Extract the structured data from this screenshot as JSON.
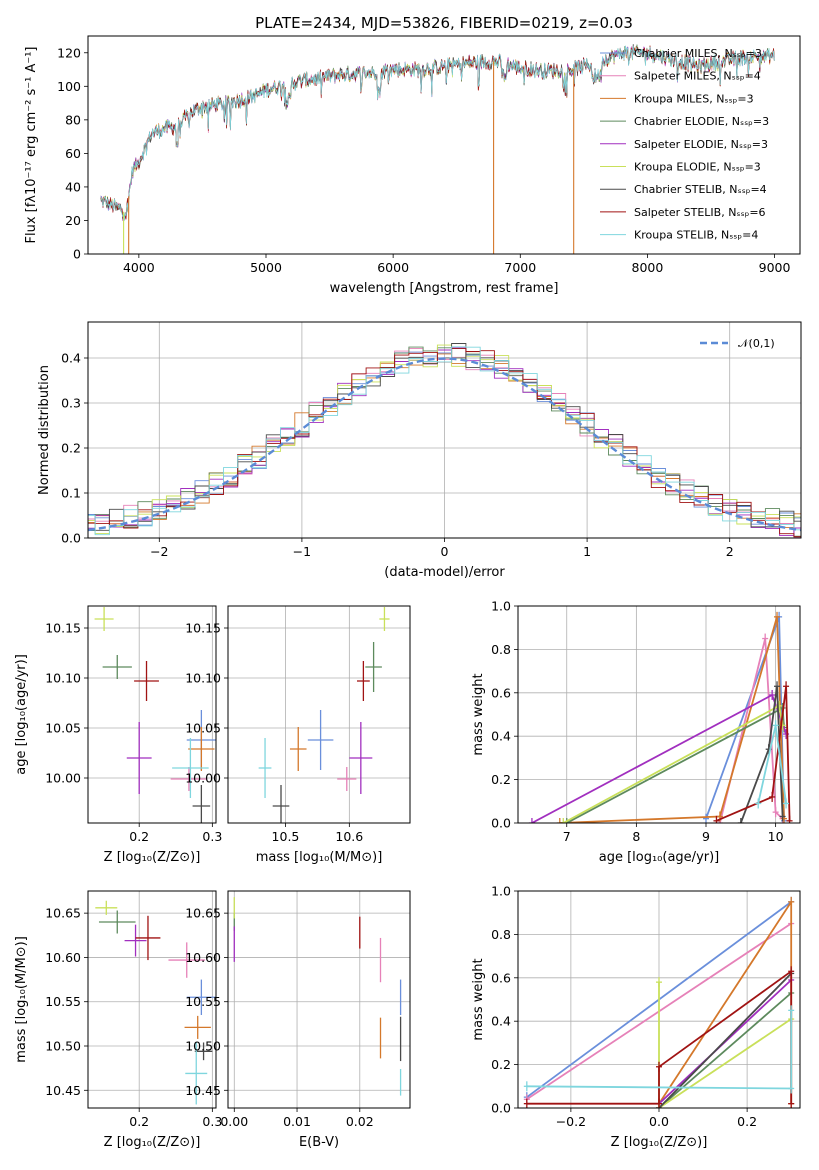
{
  "figure_title": "PLATE=2434, MJD=53826, FIBERID=0219, z=0.03",
  "model_colors": [
    "#6a8fdb",
    "#e681b8",
    "#d4782b",
    "#5d8a5d",
    "#a12fbf",
    "#c9e05a",
    "#4a4a4a",
    "#a01313",
    "#7fd6de"
  ],
  "chart_data": [
    {
      "id": "spectrum",
      "type": "line",
      "title": "PLATE=2434, MJD=53826, FIBERID=0219, z=0.03",
      "xlabel": "wavelength [Angstrom, rest frame]",
      "ylabel": "Flux [fλ10⁻¹⁷ erg cm⁻² s⁻¹ A⁻¹]",
      "xlim": [
        3600,
        9200
      ],
      "ylim": [
        0,
        130
      ],
      "xticks": [
        4000,
        5000,
        6000,
        7000,
        8000,
        9000
      ],
      "yticks": [
        0,
        20,
        40,
        60,
        80,
        100,
        120
      ],
      "grid": false,
      "legend_position": "right",
      "legend": [
        "Chabrier MILES, Nₛₛₚ=3",
        "Salpeter MILES, Nₛₛₚ=4",
        "Kroupa MILES, Nₛₛₚ=3",
        "Chabrier ELODIE, Nₛₛₚ=3",
        "Salpeter ELODIE, Nₛₛₚ=3",
        "Kroupa ELODIE, Nₛₛₚ=3",
        "Chabrier STELIB, Nₛₛₚ=4",
        "Salpeter STELIB, Nₛₛₚ=6",
        "Kroupa STELIB, Nₛₛₚ=4"
      ],
      "continuum": {
        "wavelength": [
          3700,
          3850,
          3900,
          3950,
          4000,
          4100,
          4200,
          4300,
          4400,
          4500,
          4700,
          4900,
          5000,
          5200,
          5400,
          5600,
          5800,
          6000,
          6200,
          6400,
          6600,
          6800,
          7000,
          7200,
          7400,
          7600,
          7800,
          8000,
          8200,
          8400,
          8600,
          8800,
          9000
        ],
        "flux": [
          32,
          27,
          24,
          50,
          55,
          72,
          75,
          76,
          84,
          88,
          90,
          94,
          98,
          102,
          105,
          107,
          108,
          110,
          110,
          112,
          114,
          115,
          111,
          109,
          110,
          114,
          120,
          120,
          116,
          112,
          115,
          118,
          118
        ]
      },
      "dropouts": [
        {
          "model": 2,
          "wavelength": 3920
        },
        {
          "model": 5,
          "wavelength": 3880
        },
        {
          "model": 2,
          "wavelength": 6790
        },
        {
          "model": 2,
          "wavelength": 7420
        }
      ]
    },
    {
      "id": "residuals",
      "type": "line",
      "xlabel": "(data-model)/error",
      "ylabel": "Normed distribution",
      "xlim": [
        -2.5,
        2.5
      ],
      "ylim": [
        0,
        0.48
      ],
      "xticks": [
        -2,
        -1,
        0,
        1,
        2
      ],
      "yticks": [
        0.0,
        0.1,
        0.2,
        0.3,
        0.4
      ],
      "grid": true,
      "legend_position": "top-right",
      "reference_curve": {
        "name": "𝒩(0,1)",
        "mean": 0,
        "sigma": 1
      },
      "bin_width": 0.1
    },
    {
      "id": "age-vs-z",
      "type": "scatter",
      "xlabel": "Z [log₁₀(Z/Z⊙)]",
      "ylabel": "age  [log₁₀(age/yr)]",
      "xlim": [
        0.13,
        0.305
      ],
      "ylim": [
        9.955,
        10.172
      ],
      "xticks": [
        0.2,
        0.3
      ],
      "yticks": [
        10.0,
        10.05,
        10.1,
        10.15
      ],
      "grid": true,
      "points": [
        {
          "model": 0,
          "x": 0.285,
          "y": 10.038,
          "xerr": 0.02,
          "yerr": 0.03
        },
        {
          "model": 1,
          "x": 0.268,
          "y": 9.999,
          "xerr": 0.025,
          "yerr": 0.012
        },
        {
          "model": 2,
          "x": 0.285,
          "y": 10.029,
          "xerr": 0.018,
          "yerr": 0.022
        },
        {
          "model": 3,
          "x": 0.17,
          "y": 10.111,
          "xerr": 0.02,
          "yerr": 0.012
        },
        {
          "model": 4,
          "x": 0.2,
          "y": 10.02,
          "xerr": 0.017,
          "yerr": 0.036
        },
        {
          "model": 5,
          "x": 0.152,
          "y": 10.159,
          "xerr": 0.013,
          "yerr": 0.012
        },
        {
          "model": 6,
          "x": 0.285,
          "y": 9.972,
          "xerr": 0.012,
          "yerr": 0.021
        },
        {
          "model": 7,
          "x": 0.21,
          "y": 10.097,
          "xerr": 0.017,
          "yerr": 0.02
        },
        {
          "model": 8,
          "x": 0.27,
          "y": 10.01,
          "xerr": 0.025,
          "yerr": 0.03
        }
      ]
    },
    {
      "id": "age-vs-mass",
      "type": "scatter",
      "xlabel": "mass [log₁₀(M/M⊙)]",
      "ylabel": "",
      "xlim": [
        10.41,
        10.695
      ],
      "ylim": [
        9.955,
        10.172
      ],
      "xticks": [
        10.5,
        10.6
      ],
      "yticks": [
        10.0,
        10.05,
        10.1,
        10.15
      ],
      "grid": true,
      "points": [
        {
          "model": 0,
          "x": 10.555,
          "y": 10.038,
          "xerr": 0.02,
          "yerr": 0.03
        },
        {
          "model": 1,
          "x": 10.596,
          "y": 9.999,
          "xerr": 0.015,
          "yerr": 0.012
        },
        {
          "model": 2,
          "x": 10.52,
          "y": 10.029,
          "xerr": 0.013,
          "yerr": 0.022
        },
        {
          "model": 3,
          "x": 10.638,
          "y": 10.111,
          "xerr": 0.013,
          "yerr": 0.025
        },
        {
          "model": 4,
          "x": 10.618,
          "y": 10.02,
          "xerr": 0.018,
          "yerr": 0.036
        },
        {
          "model": 5,
          "x": 10.655,
          "y": 10.159,
          "xerr": 0.008,
          "yerr": 0.012
        },
        {
          "model": 6,
          "x": 10.493,
          "y": 9.972,
          "xerr": 0.013,
          "yerr": 0.021
        },
        {
          "model": 7,
          "x": 10.622,
          "y": 10.097,
          "xerr": 0.01,
          "yerr": 0.02
        },
        {
          "model": 8,
          "x": 10.468,
          "y": 10.01,
          "xerr": 0.01,
          "yerr": 0.03
        }
      ]
    },
    {
      "id": "mass-weight-vs-age",
      "type": "line",
      "xlabel": "age  [log₁₀(age/yr)]",
      "ylabel": "mass weight",
      "xlim": [
        6.3,
        10.35
      ],
      "ylim": [
        0,
        1.0
      ],
      "xticks": [
        7,
        8,
        9,
        10
      ],
      "yticks": [
        0.0,
        0.2,
        0.4,
        0.6,
        0.8,
        1.0
      ],
      "grid": true,
      "series": [
        {
          "model": 0,
          "x": [
            9.0,
            10.05,
            10.12
          ],
          "y": [
            0.02,
            0.95,
            0.01
          ]
        },
        {
          "model": 1,
          "x": [
            9.2,
            9.85,
            10.0,
            10.1
          ],
          "y": [
            0.0,
            0.85,
            0.05,
            0.02
          ]
        },
        {
          "model": 2,
          "x": [
            6.9,
            9.2,
            10.02,
            10.12
          ],
          "y": [
            0.0,
            0.03,
            0.95,
            0.02
          ]
        },
        {
          "model": 3,
          "x": [
            7.0,
            10.1,
            10.12
          ],
          "y": [
            0.0,
            0.53,
            0.44
          ]
        },
        {
          "model": 4,
          "x": [
            6.5,
            9.95,
            10.15
          ],
          "y": [
            0.0,
            0.59,
            0.41
          ]
        },
        {
          "model": 5,
          "x": [
            6.95,
            10.05,
            10.1
          ],
          "y": [
            0.0,
            0.54,
            0.45
          ]
        },
        {
          "model": 6,
          "x": [
            9.5,
            9.9,
            10.02,
            10.1
          ],
          "y": [
            0.0,
            0.34,
            0.63,
            0.03
          ]
        },
        {
          "model": 7,
          "x": [
            9.15,
            9.95,
            10.15,
            10.2
          ],
          "y": [
            0.01,
            0.12,
            0.63,
            0.01
          ]
        },
        {
          "model": 8,
          "x": [
            9.75,
            10.0,
            10.15
          ],
          "y": [
            0.09,
            0.45,
            0.09
          ]
        }
      ]
    },
    {
      "id": "mass-vs-z",
      "type": "scatter",
      "xlabel": "Z [log₁₀(Z/Z⊙)]",
      "ylabel": "mass [log₁₀(M/M⊙)]",
      "xlim": [
        0.13,
        0.305
      ],
      "ylim": [
        10.43,
        10.675
      ],
      "xticks": [
        0.2,
        0.3
      ],
      "yticks": [
        10.45,
        10.5,
        10.55,
        10.6,
        10.65
      ],
      "grid": true,
      "points": [
        {
          "model": 0,
          "x": 0.285,
          "y": 10.555,
          "xerr": 0.02,
          "yerr": 0.02
        },
        {
          "model": 1,
          "x": 0.265,
          "y": 10.597,
          "xerr": 0.025,
          "yerr": 0.02
        },
        {
          "model": 2,
          "x": 0.28,
          "y": 10.521,
          "xerr": 0.018,
          "yerr": 0.013
        },
        {
          "model": 3,
          "x": 0.17,
          "y": 10.64,
          "xerr": 0.025,
          "yerr": 0.013
        },
        {
          "model": 4,
          "x": 0.195,
          "y": 10.619,
          "xerr": 0.015,
          "yerr": 0.018
        },
        {
          "model": 5,
          "x": 0.155,
          "y": 10.656,
          "xerr": 0.015,
          "yerr": 0.008
        },
        {
          "model": 6,
          "x": 0.288,
          "y": 10.494,
          "xerr": 0.012,
          "yerr": 0.01
        },
        {
          "model": 7,
          "x": 0.212,
          "y": 10.622,
          "xerr": 0.017,
          "yerr": 0.025
        },
        {
          "model": 8,
          "x": 0.278,
          "y": 10.469,
          "xerr": 0.015,
          "yerr": 0.035
        }
      ]
    },
    {
      "id": "mass-vs-ebv",
      "type": "scatter",
      "xlabel": "E(B-V)",
      "ylabel": "",
      "xlim": [
        -0.001,
        0.028
      ],
      "ylim": [
        10.43,
        10.675
      ],
      "xticks": [
        0.0,
        0.01,
        0.02
      ],
      "yticks": [
        10.45,
        10.5,
        10.55,
        10.6,
        10.65
      ],
      "grid": true,
      "points": [
        {
          "model": 0,
          "x": 0.0265,
          "y": 10.555,
          "xerr": 0,
          "yerr": 0.02
        },
        {
          "model": 1,
          "x": 0.0233,
          "y": 10.597,
          "xerr": 0,
          "yerr": 0.025
        },
        {
          "model": 2,
          "x": 0.0233,
          "y": 10.509,
          "xerr": 0,
          "yerr": 0.023
        },
        {
          "model": 3,
          "x": 0.0,
          "y": 10.64,
          "xerr": 0,
          "yerr": 0.01
        },
        {
          "model": 4,
          "x": 0.0,
          "y": 10.615,
          "xerr": 0,
          "yerr": 0.02
        },
        {
          "model": 5,
          "x": 0.0,
          "y": 10.656,
          "xerr": 0,
          "yerr": 0.012
        },
        {
          "model": 6,
          "x": 0.0265,
          "y": 10.508,
          "xerr": 0,
          "yerr": 0.025
        },
        {
          "model": 7,
          "x": 0.02,
          "y": 10.628,
          "xerr": 0,
          "yerr": 0.018
        },
        {
          "model": 8,
          "x": 0.0265,
          "y": 10.459,
          "xerr": 0,
          "yerr": 0.015
        }
      ]
    },
    {
      "id": "mass-weight-vs-z",
      "type": "line",
      "xlabel": "Z [log₁₀(Z/Z⊙)]",
      "ylabel": "mass weight",
      "xlim": [
        -0.32,
        0.32
      ],
      "ylim": [
        0,
        1.0
      ],
      "xticks": [
        -0.2,
        0.0,
        0.2
      ],
      "yticks": [
        0.0,
        0.2,
        0.4,
        0.6,
        0.8,
        1.0
      ],
      "grid": true,
      "series": [
        {
          "model": 0,
          "x": [
            -0.3,
            0.3
          ],
          "y": [
            0.05,
            0.95
          ]
        },
        {
          "model": 1,
          "x": [
            -0.3,
            0.3
          ],
          "y": [
            0.04,
            0.85
          ]
        },
        {
          "model": 2,
          "x": [
            0.0,
            0.0,
            0.3,
            0.3
          ],
          "y": [
            0.0,
            0.02,
            0.95,
            0.02
          ]
        },
        {
          "model": 3,
          "x": [
            0.0,
            0.3
          ],
          "y": [
            0.0,
            0.53
          ]
        },
        {
          "model": 4,
          "x": [
            0.0,
            0.0,
            0.3
          ],
          "y": [
            0.0,
            0.02,
            0.59
          ]
        },
        {
          "model": 5,
          "x": [
            0.0,
            0.0,
            0.3
          ],
          "y": [
            0.58,
            0.0,
            0.41
          ]
        },
        {
          "model": 6,
          "x": [
            0.0,
            0.3
          ],
          "y": [
            0.0,
            0.62
          ]
        },
        {
          "model": 7,
          "x": [
            -0.3,
            0.0,
            0.0,
            0.3,
            0.3
          ],
          "y": [
            0.02,
            0.02,
            0.19,
            0.63,
            0.02
          ]
        },
        {
          "model": 8,
          "x": [
            -0.3,
            0.3,
            0.3
          ],
          "y": [
            0.1,
            0.09,
            0.45
          ]
        }
      ]
    }
  ]
}
